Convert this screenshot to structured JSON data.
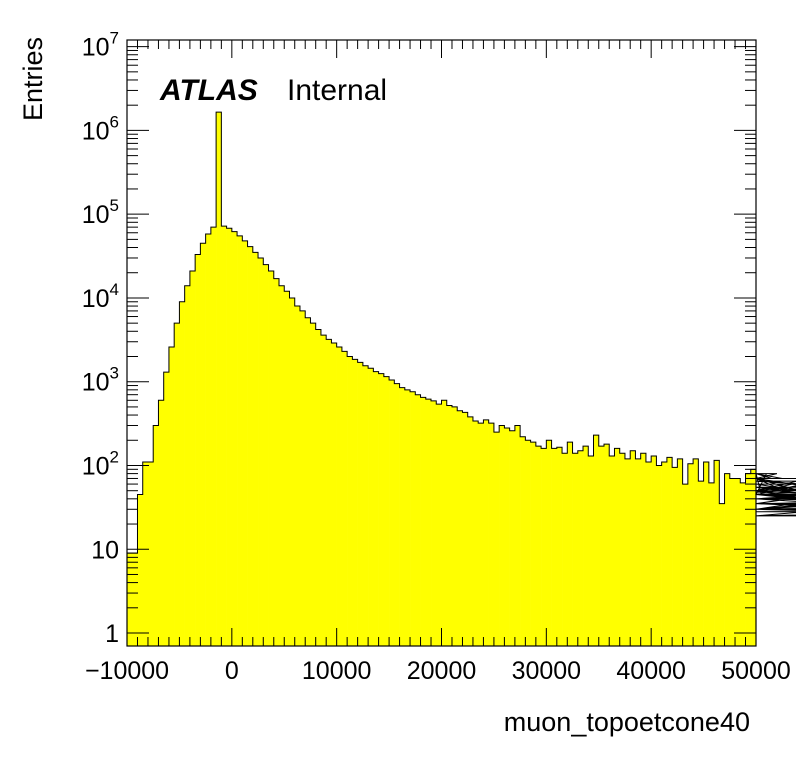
{
  "chart_data": {
    "type": "bar",
    "subtype": "histogram",
    "xlabel": "muon_topoetcone40",
    "ylabel": "Entries",
    "xlim": [
      -10000,
      50000
    ],
    "ylim": [
      0.7,
      12000000
    ],
    "y_scale": "log",
    "bin_width": 500,
    "fill_color": "#ffff00",
    "line_color": "#000000",
    "x_ticks": [
      "−10000",
      "0",
      "10000",
      "20000",
      "30000",
      "40000",
      "50000"
    ],
    "y_ticks": [
      {
        "base": "1",
        "exp": ""
      },
      {
        "base": "10",
        "exp": ""
      },
      {
        "base": "10",
        "exp": "2"
      },
      {
        "base": "10",
        "exp": "3"
      },
      {
        "base": "10",
        "exp": "4"
      },
      {
        "base": "10",
        "exp": "5"
      },
      {
        "base": "10",
        "exp": "6"
      },
      {
        "base": "10",
        "exp": "7"
      }
    ],
    "label_atlas": "ATLAS",
    "label_status": "Internal",
    "values": [
      9,
      9,
      45,
      110,
      110,
      300,
      600,
      1300,
      2600,
      5000,
      9000,
      14000,
      21000,
      33000,
      45000,
      58000,
      70000,
      1650000,
      72000,
      68000,
      62000,
      55000,
      48000,
      41000,
      35000,
      30000,
      25000,
      21000,
      17000,
      14000,
      12000,
      10000,
      8000,
      7000,
      5800,
      5000,
      4200,
      3600,
      3200,
      2900,
      2600,
      2300,
      2000,
      1850,
      1700,
      1550,
      1450,
      1320,
      1250,
      1150,
      1050,
      950,
      850,
      800,
      760,
      700,
      650,
      620,
      590,
      540,
      600,
      520,
      500,
      450,
      430,
      380,
      340,
      320,
      350,
      320,
      250,
      300,
      280,
      260,
      300,
      220,
      200,
      190,
      170,
      160,
      200,
      160,
      165,
      140,
      190,
      140,
      150,
      170,
      130,
      230,
      170,
      180,
      130,
      160,
      140,
      120,
      150,
      120,
      140,
      110,
      130,
      100,
      110,
      125,
      95,
      120,
      60,
      105,
      120,
      65,
      110,
      62,
      115,
      35,
      80,
      70,
      70,
      62,
      80,
      90,
      80,
      45,
      80,
      70,
      80,
      70,
      48,
      60,
      50,
      50,
      70,
      45,
      40,
      45,
      70,
      50,
      35,
      50,
      65,
      55,
      55,
      35,
      55,
      55,
      45,
      40,
      45,
      30,
      55,
      45,
      55,
      30,
      40,
      55,
      35,
      30,
      50,
      35,
      30,
      45,
      45,
      35,
      35,
      35,
      30,
      30,
      25,
      45,
      40,
      35,
      40,
      25,
      30,
      35,
      35,
      30,
      35,
      25,
      30,
      30,
      30,
      35,
      25,
      30,
      30,
      25,
      30,
      30,
      30,
      25,
      28,
      30,
      30,
      25,
      30,
      30,
      30,
      25,
      30,
      30,
      25,
      30,
      25,
      30,
      30,
      30,
      30,
      30,
      30,
      35,
      30,
      30,
      30,
      25,
      25,
      30,
      30,
      30,
      30,
      25,
      25,
      30,
      25,
      30,
      25,
      30,
      25,
      25,
      30,
      30,
      30,
      30,
      30,
      25,
      25,
      25,
      30,
      30,
      30,
      25,
      30,
      30,
      25,
      30
    ]
  }
}
